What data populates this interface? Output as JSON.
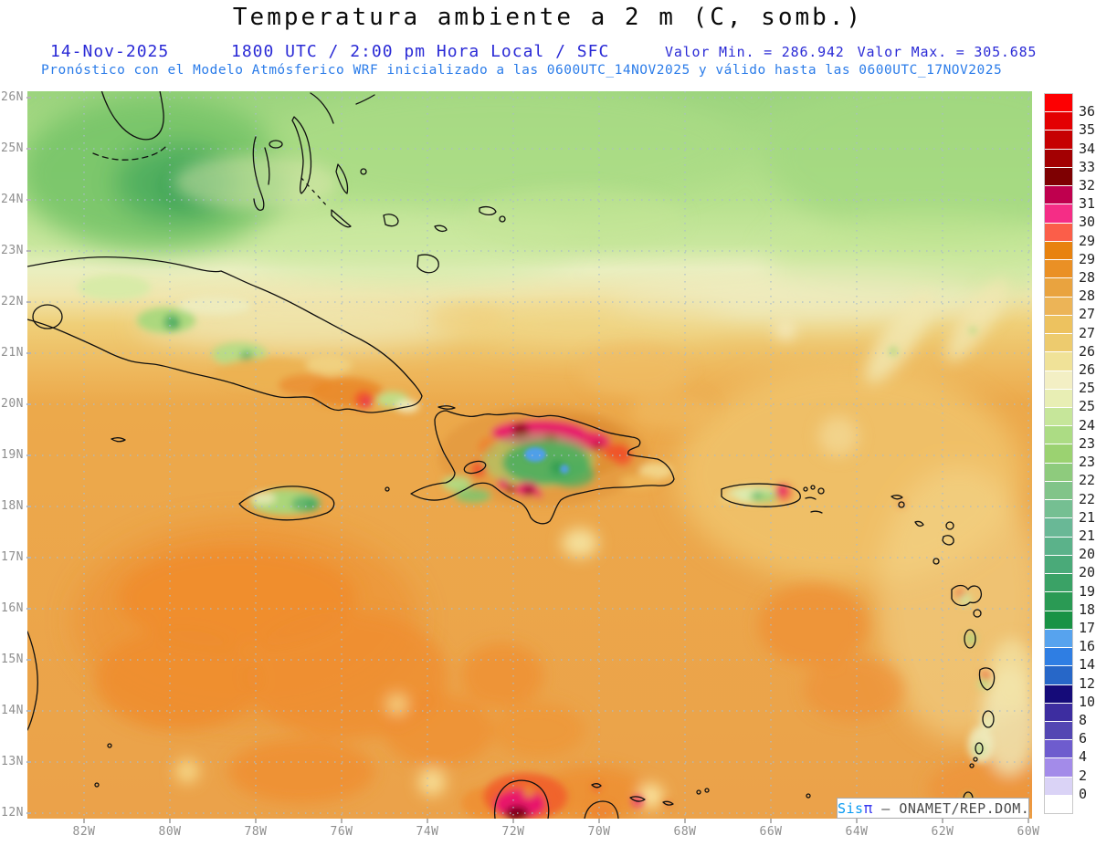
{
  "title": "Temperatura ambiente a 2 m (C, somb.)",
  "header": {
    "date": "14-Nov-2025",
    "valid": "1800 UTC / 2:00 pm Hora Local / SFC",
    "valor_min": "Valor Min. = 286.942",
    "valor_max": "Valor Max. = 305.685",
    "forecast": "Pronóstico con el Modelo Atmósferico WRF inicializado a las 0600UTC_14NOV2025 y válido hasta las  0600UTC_17NOV2025"
  },
  "map": {
    "lat_labels": [
      "26N",
      "25N",
      "24N",
      "23N",
      "22N",
      "21N",
      "20N",
      "19N",
      "18N",
      "17N",
      "16N",
      "15N",
      "14N",
      "13N",
      "12N"
    ],
    "lon_labels": [
      "82W",
      "80W",
      "78W",
      "76W",
      "74W",
      "72W",
      "70W",
      "68W",
      "66W",
      "64W",
      "62W",
      "60W"
    ]
  },
  "colorbar": {
    "units": "C",
    "levels": [
      {
        "label": "36",
        "color": "#fd0002"
      },
      {
        "label": "35",
        "color": "#e30002"
      },
      {
        "label": "34",
        "color": "#c60002"
      },
      {
        "label": "33",
        "color": "#a30002"
      },
      {
        "label": "32",
        "color": "#7e0002"
      },
      {
        "label": "31.5",
        "color": "#bf004e"
      },
      {
        "label": "30.7",
        "color": "#f52d86"
      },
      {
        "label": "29.7",
        "color": "#fb5e49"
      },
      {
        "label": "29",
        "color": "#e8820e"
      },
      {
        "label": "28.5",
        "color": "#ea9025"
      },
      {
        "label": "28",
        "color": "#e9a33f"
      },
      {
        "label": "27.5",
        "color": "#ecb457"
      },
      {
        "label": "27",
        "color": "#edc25f"
      },
      {
        "label": "26.5",
        "color": "#edcb6e"
      },
      {
        "label": "26",
        "color": "#f0e298"
      },
      {
        "label": "25.5",
        "color": "#f3efc4"
      },
      {
        "label": "25",
        "color": "#e8eeb4"
      },
      {
        "label": "24",
        "color": "#c6e69a"
      },
      {
        "label": "23.5",
        "color": "#acdc84"
      },
      {
        "label": "23",
        "color": "#9bd271"
      },
      {
        "label": "22.5",
        "color": "#8ecb7d"
      },
      {
        "label": "22",
        "color": "#81c489"
      },
      {
        "label": "21.5",
        "color": "#75bf92"
      },
      {
        "label": "21",
        "color": "#69b896"
      },
      {
        "label": "20.5",
        "color": "#5bb28a"
      },
      {
        "label": "20",
        "color": "#4aaa79"
      },
      {
        "label": "19",
        "color": "#3aa266"
      },
      {
        "label": "18",
        "color": "#2a9a54"
      },
      {
        "label": "17",
        "color": "#199245"
      },
      {
        "label": "16",
        "color": "#57a3ee"
      },
      {
        "label": "14",
        "color": "#2f7ee3"
      },
      {
        "label": "12",
        "color": "#2767c8"
      },
      {
        "label": "10",
        "color": "#150b79"
      },
      {
        "label": "8",
        "color": "#3d2da0"
      },
      {
        "label": "6",
        "color": "#5346b3"
      },
      {
        "label": "4",
        "color": "#6e5cce"
      },
      {
        "label": "2",
        "color": "#a38be9"
      },
      {
        "label": "0",
        "color": "#dad3f6"
      },
      {
        "label": "",
        "color": "#ffffff"
      }
    ]
  },
  "watermark": {
    "brand": "Sis",
    "pi": "π",
    "separator": "—",
    "org": "ONAMET/REP.DOM."
  }
}
